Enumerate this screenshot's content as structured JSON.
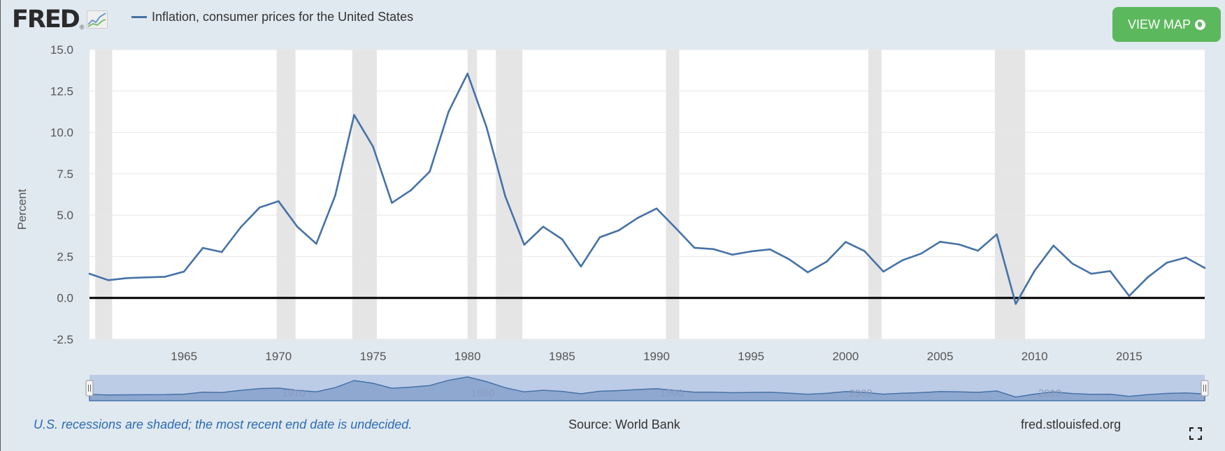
{
  "header": {
    "logo_text": "FRED",
    "logo_reg": "®",
    "logo_icon": "chart-sparkline-icon",
    "legend_label": "Inflation, consumer prices for the United States",
    "view_map_label": "VIEW MAP",
    "view_map_icon": "globe-icon"
  },
  "footer": {
    "note": "U.S. recessions are shaded; the most recent end date is undecided.",
    "source": "Source: World Bank",
    "url": "fred.stlouisfed.org",
    "fullscreen_icon": "fullscreen-icon"
  },
  "colors": {
    "series": "#4572a7",
    "recession": "#e5e5e5",
    "button": "#5cb85c",
    "note": "#2b6bb4",
    "navigator_fill": "#8fa8d0",
    "navigator_bg": "#bccbe6"
  },
  "chart_data": {
    "type": "line",
    "title": "",
    "xlabel": "",
    "ylabel": "Percent",
    "xlim": [
      1960,
      2019
    ],
    "ylim": [
      -2.5,
      15.0
    ],
    "yticks": [
      "15.0",
      "12.5",
      "10.0",
      "7.5",
      "5.0",
      "2.5",
      "0.0",
      "-2.5"
    ],
    "ytick_values": [
      15.0,
      12.5,
      10.0,
      7.5,
      5.0,
      2.5,
      0.0,
      -2.5
    ],
    "xticks": [
      "1965",
      "1970",
      "1975",
      "1980",
      "1985",
      "1990",
      "1995",
      "2000",
      "2005",
      "2010",
      "2015"
    ],
    "xtick_values": [
      1965,
      1970,
      1975,
      1980,
      1985,
      1990,
      1995,
      2000,
      2005,
      2010,
      2015
    ],
    "navigator_labels": [
      "1970",
      "1980",
      "1990",
      "2000",
      "2010"
    ],
    "navigator_label_values": [
      1970,
      1980,
      1990,
      2000,
      2010
    ],
    "grid": true,
    "legend": "top-left",
    "recessions": [
      [
        1960.3,
        1961.2
      ],
      [
        1969.9,
        1970.9
      ],
      [
        1973.9,
        1975.2
      ],
      [
        1980.0,
        1980.5
      ],
      [
        1981.5,
        1982.9
      ],
      [
        1990.5,
        1991.2
      ],
      [
        2001.2,
        2001.9
      ],
      [
        2007.9,
        2009.5
      ]
    ],
    "series": [
      {
        "name": "Inflation, consumer prices for the United States",
        "x": [
          1960,
          1961,
          1962,
          1963,
          1964,
          1965,
          1966,
          1967,
          1968,
          1969,
          1970,
          1971,
          1972,
          1973,
          1974,
          1975,
          1976,
          1977,
          1978,
          1979,
          1980,
          1981,
          1982,
          1983,
          1984,
          1985,
          1986,
          1987,
          1988,
          1989,
          1990,
          1991,
          1992,
          1993,
          1994,
          1995,
          1996,
          1997,
          1998,
          1999,
          2000,
          2001,
          2002,
          2003,
          2004,
          2005,
          2006,
          2007,
          2008,
          2009,
          2010,
          2011,
          2012,
          2013,
          2014,
          2015,
          2016,
          2017,
          2018,
          2019
        ],
        "y": [
          1.46,
          1.07,
          1.2,
          1.24,
          1.28,
          1.59,
          3.02,
          2.77,
          4.27,
          5.46,
          5.84,
          4.29,
          3.27,
          6.18,
          11.05,
          9.14,
          5.74,
          6.5,
          7.63,
          11.25,
          13.55,
          10.33,
          6.13,
          3.21,
          4.3,
          3.55,
          1.9,
          3.66,
          4.08,
          4.83,
          5.4,
          4.23,
          3.03,
          2.95,
          2.61,
          2.81,
          2.93,
          2.34,
          1.55,
          2.19,
          3.38,
          2.83,
          1.59,
          2.27,
          2.68,
          3.39,
          3.23,
          2.85,
          3.84,
          -0.36,
          1.64,
          3.16,
          2.07,
          1.46,
          1.62,
          0.12,
          1.26,
          2.13,
          2.44,
          1.81
        ]
      }
    ]
  }
}
